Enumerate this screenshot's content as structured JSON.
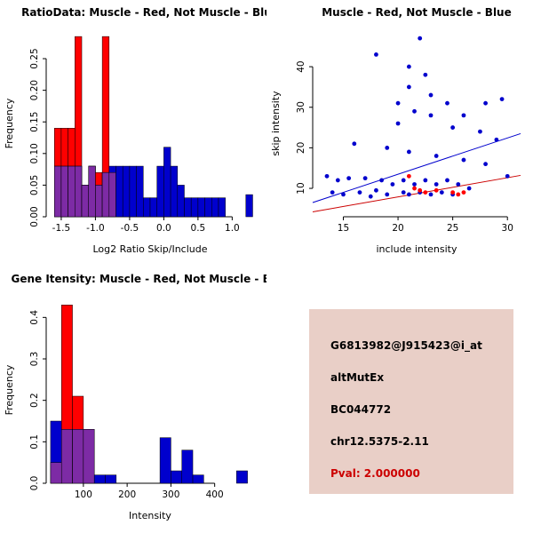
{
  "figure": {
    "background": "#FFFFFF"
  },
  "chart_data": [
    {
      "type": "histogram",
      "title": "RatioData: Muscle - Red, Not Muscle - Blue",
      "xlabel": "Log2 Ratio Skip/Include",
      "ylabel": "Frequency",
      "xlim": [
        -1.72,
        1.32
      ],
      "ylim": [
        0,
        0.295
      ],
      "xticks": [
        -1.5,
        -1.0,
        -0.5,
        0.0,
        0.5,
        1.0
      ],
      "yticks": [
        0,
        0.05,
        0.1,
        0.15,
        0.2,
        0.25
      ],
      "xtick_dec": 1,
      "ytick_dec": 2,
      "bin_width": 0.1,
      "colors": {
        "red": "#FF0000",
        "blue": "#0000CD",
        "overlap": "#7D2BA5"
      },
      "legend": {
        "red": "Muscle",
        "blue": "Not Muscle"
      },
      "bins": [
        {
          "x": -1.6,
          "red": 0.14,
          "blue": 0.08
        },
        {
          "x": -1.5,
          "red": 0.14,
          "blue": 0.08
        },
        {
          "x": -1.4,
          "red": 0.14,
          "blue": 0.08
        },
        {
          "x": -1.3,
          "red": 0.285,
          "blue": 0.08
        },
        {
          "x": -1.2,
          "red": 0.05,
          "blue": 0.05
        },
        {
          "x": -1.1,
          "red": 0.08,
          "blue": 0.08
        },
        {
          "x": -1.0,
          "red": 0.07,
          "blue": 0.05
        },
        {
          "x": -0.9,
          "red": 0.285,
          "blue": 0.07
        },
        {
          "x": -0.8,
          "red": 0.07,
          "blue": 0.08
        },
        {
          "x": -0.7,
          "red": 0,
          "blue": 0.08
        },
        {
          "x": -0.6,
          "red": 0,
          "blue": 0.08
        },
        {
          "x": -0.5,
          "red": 0,
          "blue": 0.08
        },
        {
          "x": -0.4,
          "red": 0,
          "blue": 0.08
        },
        {
          "x": -0.3,
          "red": 0,
          "blue": 0.03
        },
        {
          "x": -0.2,
          "red": 0,
          "blue": 0.03
        },
        {
          "x": -0.1,
          "red": 0,
          "blue": 0.08
        },
        {
          "x": 0.0,
          "red": 0,
          "blue": 0.11
        },
        {
          "x": 0.1,
          "red": 0,
          "blue": 0.08
        },
        {
          "x": 0.2,
          "red": 0,
          "blue": 0.05
        },
        {
          "x": 0.3,
          "red": 0,
          "blue": 0.03
        },
        {
          "x": 0.4,
          "red": 0,
          "blue": 0.03
        },
        {
          "x": 0.5,
          "red": 0,
          "blue": 0.03
        },
        {
          "x": 0.6,
          "red": 0,
          "blue": 0.03
        },
        {
          "x": 0.7,
          "red": 0,
          "blue": 0.03
        },
        {
          "x": 0.8,
          "red": 0,
          "blue": 0.03
        },
        {
          "x": 1.2,
          "red": 0,
          "blue": 0.035
        }
      ]
    },
    {
      "type": "scatter",
      "title": "Muscle - Red, Not Muscle - Blue",
      "xlabel": "include intensity",
      "ylabel": "skip intensity",
      "xlim": [
        12.2,
        31.2
      ],
      "ylim": [
        3,
        49
      ],
      "xticks": [
        15,
        20,
        25,
        30
      ],
      "yticks": [
        10,
        20,
        30,
        40
      ],
      "xtick_dec": 0,
      "ytick_dec": 0,
      "series": [
        {
          "name": "Not Muscle",
          "color": "#0000CD",
          "points": [
            [
              13.5,
              13
            ],
            [
              14,
              9
            ],
            [
              14.5,
              12
            ],
            [
              15,
              8.5
            ],
            [
              15.5,
              12.5
            ],
            [
              16,
              21
            ],
            [
              16.5,
              9
            ],
            [
              17,
              12.5
            ],
            [
              17.5,
              8
            ],
            [
              18,
              43
            ],
            [
              18,
              9.5
            ],
            [
              18.5,
              12
            ],
            [
              19,
              20
            ],
            [
              19,
              8.5
            ],
            [
              19.5,
              11
            ],
            [
              20,
              31
            ],
            [
              20,
              26
            ],
            [
              20.5,
              12
            ],
            [
              20.5,
              9
            ],
            [
              21,
              40
            ],
            [
              21,
              35
            ],
            [
              21,
              19
            ],
            [
              21,
              8.5
            ],
            [
              21.5,
              29
            ],
            [
              21.5,
              11
            ],
            [
              22,
              47
            ],
            [
              22,
              9
            ],
            [
              22.5,
              38
            ],
            [
              22.5,
              12
            ],
            [
              23,
              33
            ],
            [
              23,
              28
            ],
            [
              23,
              8.5
            ],
            [
              23.5,
              18
            ],
            [
              23.5,
              11
            ],
            [
              24,
              9
            ],
            [
              24.5,
              31
            ],
            [
              24.5,
              12
            ],
            [
              25,
              25
            ],
            [
              25,
              8.5
            ],
            [
              25.5,
              11
            ],
            [
              26,
              28
            ],
            [
              26,
              17
            ],
            [
              26.5,
              10
            ],
            [
              27.5,
              24
            ],
            [
              28,
              31
            ],
            [
              28,
              16
            ],
            [
              29,
              22
            ],
            [
              29.5,
              32
            ],
            [
              30,
              13
            ]
          ]
        },
        {
          "name": "Muscle",
          "color": "#FF0000",
          "points": [
            [
              21,
              13
            ],
            [
              21.5,
              10
            ],
            [
              22,
              9.5
            ],
            [
              22.5,
              9
            ],
            [
              23.5,
              9.5
            ],
            [
              25,
              9
            ],
            [
              25.5,
              8.5
            ],
            [
              26,
              9
            ]
          ]
        }
      ],
      "lines": [
        {
          "name": "not-muscle-fit",
          "color": "#0000CD",
          "x1": 12.2,
          "y1": 6.5,
          "x2": 31.2,
          "y2": 23.5
        },
        {
          "name": "muscle-fit",
          "color": "#CC0000",
          "x1": 12.2,
          "y1": 4.2,
          "x2": 31.2,
          "y2": 13.2
        }
      ]
    },
    {
      "type": "histogram",
      "title": "Gene Itensity: Muscle - Red, Not Muscle - Blue",
      "xlabel": "Intensity",
      "ylabel": "Frequency",
      "xlim": [
        15,
        490
      ],
      "ylim": [
        0,
        0.45
      ],
      "xticks": [
        100,
        200,
        300,
        400
      ],
      "yticks": [
        0,
        0.1,
        0.2,
        0.3,
        0.4
      ],
      "xtick_dec": 0,
      "ytick_dec": 1,
      "bin_width": 25,
      "colors": {
        "red": "#FF0000",
        "blue": "#0000CD",
        "overlap": "#7D2BA5"
      },
      "legend": {
        "red": "Muscle",
        "blue": "Not Muscle"
      },
      "bins": [
        {
          "x": 25,
          "red": 0.05,
          "blue": 0.15
        },
        {
          "x": 50,
          "red": 0.43,
          "blue": 0.13
        },
        {
          "x": 75,
          "red": 0.21,
          "blue": 0.13
        },
        {
          "x": 100,
          "red": 0.13,
          "blue": 0.13
        },
        {
          "x": 125,
          "red": 0,
          "blue": 0.02
        },
        {
          "x": 150,
          "red": 0,
          "blue": 0.02
        },
        {
          "x": 275,
          "red": 0,
          "blue": 0.11
        },
        {
          "x": 300,
          "red": 0,
          "blue": 0.03
        },
        {
          "x": 325,
          "red": 0,
          "blue": 0.08
        },
        {
          "x": 350,
          "red": 0,
          "blue": 0.02
        },
        {
          "x": 450,
          "red": 0,
          "blue": 0.03
        }
      ]
    }
  ],
  "info_panel": {
    "bg_color": "#E9CFC7",
    "lines": [
      {
        "text": "G6813982@J915423@i_at",
        "color": "#000000"
      },
      {
        "text": "altMutEx",
        "color": "#000000"
      },
      {
        "text": "BC044772",
        "color": "#000000"
      },
      {
        "text": "chr12.5375-2.11",
        "color": "#000000"
      },
      {
        "text": "Pval: 2.000000",
        "color": "#CC0000"
      }
    ]
  }
}
